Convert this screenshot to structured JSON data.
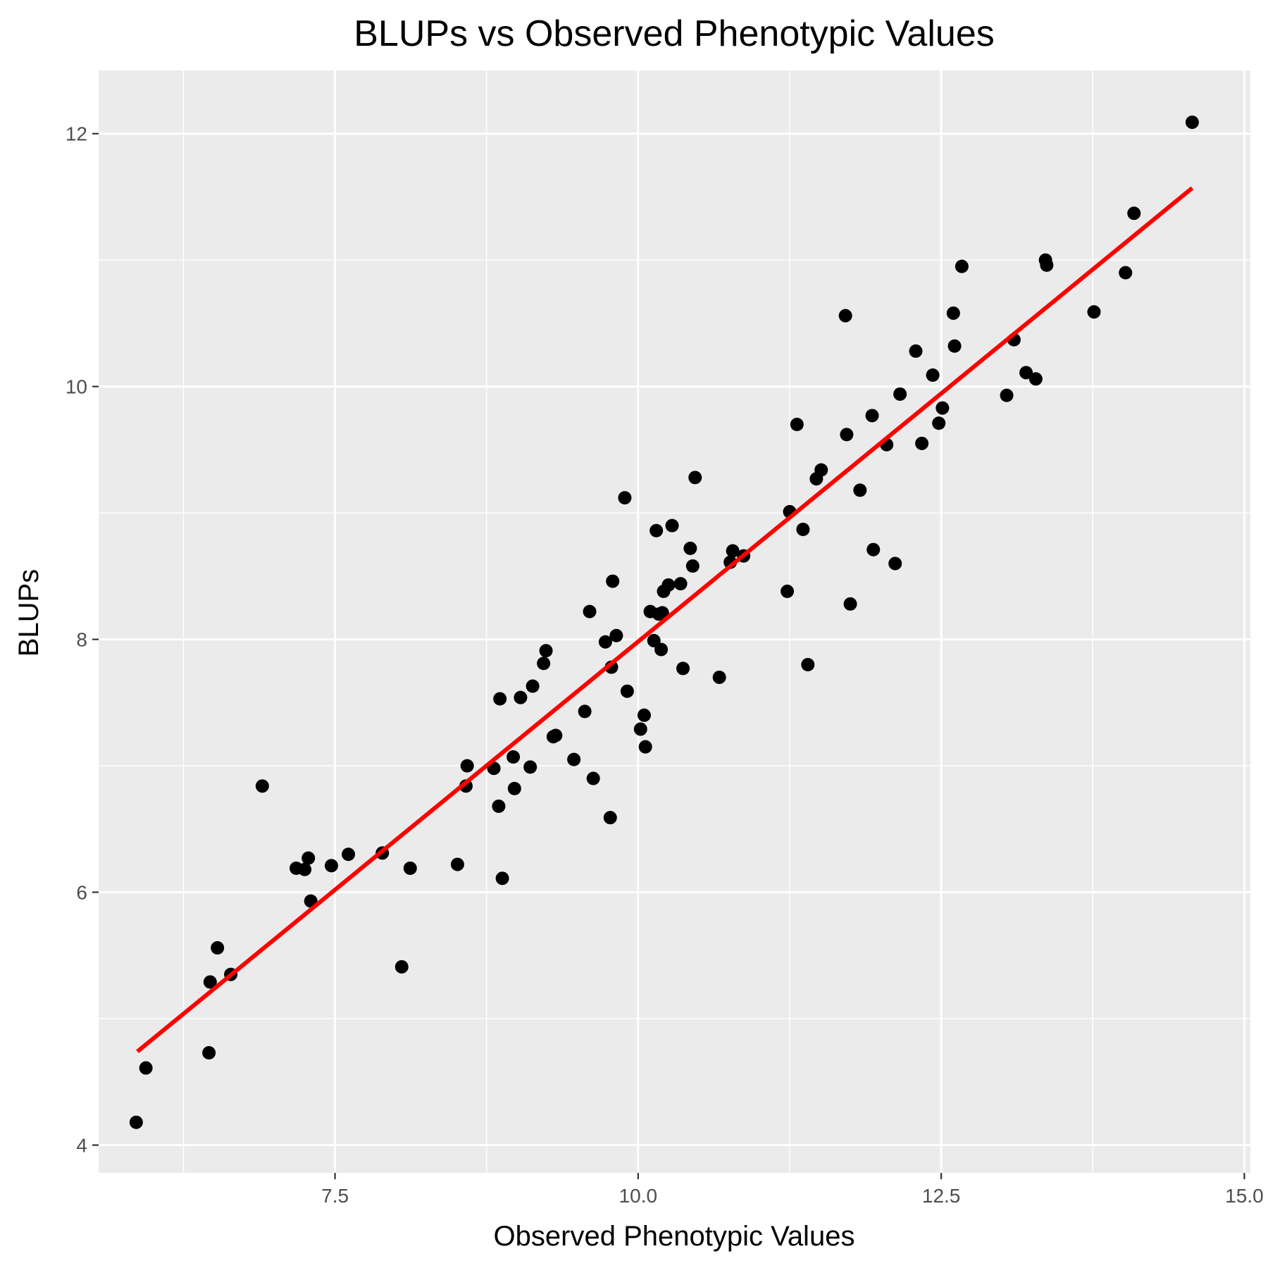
{
  "chart_data": {
    "type": "scatter",
    "title": "BLUPs vs Observed Phenotypic Values",
    "xlabel": "Observed Phenotypic Values",
    "ylabel": "BLUPs",
    "xlim": [
      5.55,
      15.05
    ],
    "ylim": [
      3.78,
      12.5
    ],
    "x_ticks": [
      7.5,
      10.0,
      12.5,
      15.0
    ],
    "x_tick_labels": [
      "7.5",
      "10.0",
      "12.5",
      "15.0"
    ],
    "y_ticks": [
      4,
      6,
      8,
      10,
      12
    ],
    "y_tick_labels": [
      "4",
      "6",
      "8",
      "10",
      "12"
    ],
    "grid": true,
    "background": "#ebebeb",
    "point_color": "#000000",
    "fit_line_color": "#ff0000",
    "fit_line": {
      "x": [
        5.87,
        14.57
      ],
      "y": [
        4.74,
        11.57
      ]
    },
    "points": {
      "x": [
        5.86,
        5.94,
        6.46,
        6.47,
        6.53,
        6.64,
        6.9,
        7.18,
        7.25,
        7.28,
        7.3,
        7.47,
        7.61,
        7.89,
        8.05,
        8.12,
        8.51,
        8.58,
        8.59,
        8.81,
        8.85,
        8.86,
        8.88,
        8.97,
        8.98,
        9.03,
        9.11,
        9.13,
        9.22,
        9.24,
        9.3,
        9.32,
        9.47,
        9.56,
        9.6,
        9.63,
        9.73,
        9.77,
        9.78,
        9.79,
        9.82,
        9.89,
        9.91,
        10.02,
        10.05,
        10.06,
        10.1,
        10.13,
        10.15,
        10.17,
        10.19,
        10.2,
        10.21,
        10.25,
        10.28,
        10.35,
        10.37,
        10.43,
        10.45,
        10.47,
        10.67,
        10.76,
        10.78,
        10.87,
        11.23,
        11.25,
        11.31,
        11.36,
        11.4,
        11.47,
        11.51,
        11.71,
        11.72,
        11.75,
        11.83,
        11.93,
        11.94,
        12.05,
        12.12,
        12.16,
        12.29,
        12.34,
        12.43,
        12.48,
        12.51,
        12.6,
        12.61,
        12.67,
        13.04,
        13.1,
        13.2,
        13.28,
        13.36,
        13.37,
        13.76,
        14.02,
        14.09,
        14.57
      ],
      "y": [
        4.18,
        4.61,
        4.73,
        5.29,
        5.56,
        5.35,
        6.84,
        6.19,
        6.18,
        6.27,
        5.93,
        6.21,
        6.3,
        6.31,
        5.41,
        6.19,
        6.22,
        6.84,
        7.0,
        6.98,
        6.68,
        7.53,
        6.11,
        7.07,
        6.82,
        7.54,
        6.99,
        7.63,
        7.81,
        7.91,
        7.23,
        7.24,
        7.05,
        7.43,
        8.22,
        6.9,
        7.98,
        6.59,
        7.78,
        8.46,
        8.03,
        9.12,
        7.59,
        7.29,
        7.4,
        7.15,
        8.22,
        7.99,
        8.86,
        8.2,
        7.92,
        8.21,
        8.38,
        8.43,
        8.9,
        8.44,
        7.77,
        8.72,
        8.58,
        9.28,
        7.7,
        8.61,
        8.7,
        8.66,
        8.38,
        9.01,
        9.7,
        8.87,
        7.8,
        9.27,
        9.34,
        10.56,
        9.62,
        8.28,
        9.18,
        9.77,
        8.71,
        9.54,
        8.6,
        9.94,
        10.28,
        9.55,
        10.09,
        9.71,
        9.83,
        10.58,
        10.32,
        10.95,
        9.93,
        10.37,
        10.11,
        10.06,
        11.0,
        10.96,
        10.59,
        10.9,
        11.37,
        12.09
      ]
    }
  }
}
